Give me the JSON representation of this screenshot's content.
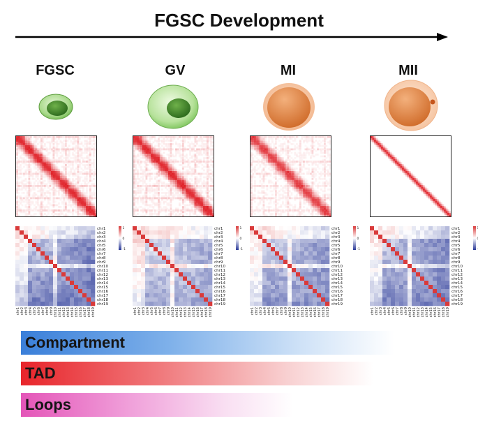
{
  "header": {
    "title": "FGSC Development"
  },
  "stages": [
    {
      "label": "FGSC",
      "cell_type": "green-small",
      "cell_color": "#5e9e3f"
    },
    {
      "label": "GV",
      "cell_type": "green-large",
      "cell_color": "#5e9e3f"
    },
    {
      "label": "MI",
      "cell_type": "orange",
      "cell_color": "#e08a4c"
    },
    {
      "label": "MII",
      "cell_type": "orange-polar",
      "cell_color": "#e08a4c"
    }
  ],
  "heatmap": {
    "chromosomes": [
      "chr1",
      "chr2",
      "chr3",
      "chr4",
      "chr5",
      "chr6",
      "chr7",
      "chr8",
      "chr9",
      "chr10",
      "chr11",
      "chr12",
      "chr13",
      "chr14",
      "chr15",
      "chr16",
      "chr17",
      "chr18",
      "chr19"
    ],
    "colorbar_ticks": [
      "1",
      "0",
      "-1"
    ],
    "high_color": "#d93a3a",
    "low_color": "#2b3a99"
  },
  "bars": [
    {
      "label": "Compartment",
      "color": "#3a7fd9"
    },
    {
      "label": "TAD",
      "color": "#e8252b"
    },
    {
      "label": "Loops",
      "color": "#e455b8"
    }
  ]
}
